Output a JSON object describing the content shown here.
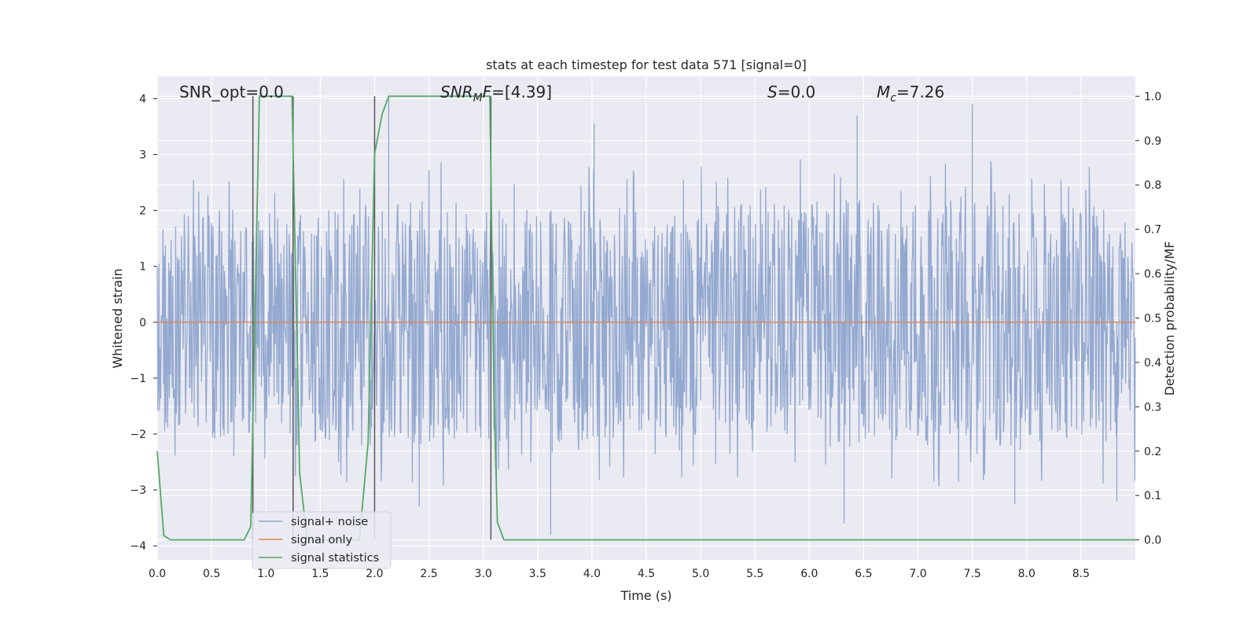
{
  "chart_data": {
    "type": "line",
    "title": "stats at each timestep for test data 571 [signal=0]",
    "xlabel": "Time (s)",
    "ylabel": "Whitened strain",
    "y2label": "Detection probability/MF",
    "xlim": [
      0,
      9
    ],
    "ylim": [
      -4.25,
      4.4
    ],
    "y2lim": [
      -0.045,
      1.045
    ],
    "x_ticks": [
      0.0,
      0.5,
      1.0,
      1.5,
      2.0,
      2.5,
      3.0,
      3.5,
      4.0,
      4.5,
      5.0,
      5.5,
      6.0,
      6.5,
      7.0,
      7.5,
      8.0,
      8.5
    ],
    "x_tick_labels": [
      "0.0",
      "0.5",
      "1.0",
      "1.5",
      "2.0",
      "2.5",
      "3.0",
      "3.5",
      "4.0",
      "4.5",
      "5.0",
      "5.5",
      "6.0",
      "6.5",
      "7.0",
      "7.5",
      "8.0",
      "8.5"
    ],
    "y_ticks": [
      -4,
      -3,
      -2,
      -1,
      0,
      1,
      2,
      3,
      4
    ],
    "y_tick_labels": [
      "−4",
      "−3",
      "−2",
      "−1",
      "0",
      "1",
      "2",
      "3",
      "4"
    ],
    "y2_ticks": [
      0.0,
      0.1,
      0.2,
      0.3,
      0.4,
      0.5,
      0.6,
      0.7,
      0.8,
      0.9,
      1.0
    ],
    "y2_tick_labels": [
      "0.0",
      "0.1",
      "0.2",
      "0.3",
      "0.4",
      "0.5",
      "0.6",
      "0.7",
      "0.8",
      "0.9",
      "1.0"
    ],
    "grid": true,
    "legend_position": "lower-left",
    "annotations": {
      "snr_opt": "SNR_opt=0.0",
      "snr_mf_main": "SNR",
      "snr_mf_sub": "M",
      "snr_mf_rest": "F",
      "snr_mf_value": "=[4.39]",
      "s_symbol": "S",
      "s_value": "=0.0",
      "mc_symbol": "M",
      "mc_sub": "c",
      "mc_value": "=7.26"
    },
    "series": [
      {
        "name": "signal+ noise",
        "color": "#8fa5cd",
        "kind": "noise",
        "envelope": {
          "t": [
            0.0,
            0.5,
            1.0,
            1.5,
            2.0,
            2.5,
            3.0,
            3.5,
            4.0,
            4.5,
            5.0,
            5.5,
            6.0,
            6.5,
            7.0,
            7.5,
            8.0,
            8.5,
            9.0
          ],
          "upper_typical": [
            1.9,
            2.0,
            2.1,
            2.0,
            2.2,
            2.2,
            2.1,
            2.1,
            2.1,
            2.0,
            2.1,
            2.1,
            2.2,
            2.2,
            2.1,
            2.3,
            2.1,
            2.1,
            2.0
          ],
          "lower_typical": [
            -2.1,
            -2.1,
            -2.2,
            -2.2,
            -2.2,
            -2.2,
            -2.2,
            -2.2,
            -2.1,
            -2.1,
            -2.1,
            -2.1,
            -2.3,
            -2.3,
            -2.2,
            -2.2,
            -2.3,
            -2.2,
            -2.1
          ]
        },
        "peaks": [
          {
            "t": 2.13,
            "v": 4.0
          },
          {
            "t": 3.62,
            "v": -3.8
          },
          {
            "t": 7.5,
            "v": 3.9
          },
          {
            "t": 4.02,
            "v": 3.55
          },
          {
            "t": 6.44,
            "v": 3.7
          },
          {
            "t": 7.89,
            "v": -3.25
          },
          {
            "t": 8.83,
            "v": -3.2
          },
          {
            "t": 6.32,
            "v": -3.6
          },
          {
            "t": 2.41,
            "v": -3.3
          }
        ]
      },
      {
        "name": "signal only",
        "color": "#dd8452",
        "x": [
          0.0,
          9.0
        ],
        "y": [
          0.0,
          0.0
        ]
      },
      {
        "name": "signal statistics",
        "color": "#55a868",
        "axis": "right",
        "x": [
          0.0,
          0.06,
          0.12,
          0.8,
          0.86,
          0.94,
          1.0,
          1.24,
          1.31,
          1.38,
          1.44,
          1.86,
          1.94,
          2.0,
          2.07,
          2.13,
          2.2,
          3.06,
          3.1,
          3.13,
          3.19,
          9.0
        ],
        "y": [
          0.2,
          0.01,
          0.0,
          0.0,
          0.03,
          1.0,
          1.0,
          1.0,
          0.15,
          0.0,
          0.0,
          0.0,
          0.22,
          0.87,
          0.96,
          1.0,
          1.0,
          1.0,
          0.3,
          0.04,
          0.0,
          0.0
        ]
      }
    ],
    "vertical_markers": [
      0.88,
      1.25,
      2.0,
      3.07
    ],
    "vertical_marker_color": "#555555",
    "background_color": "#eaeaf2",
    "grid_color": "#ffffff"
  }
}
